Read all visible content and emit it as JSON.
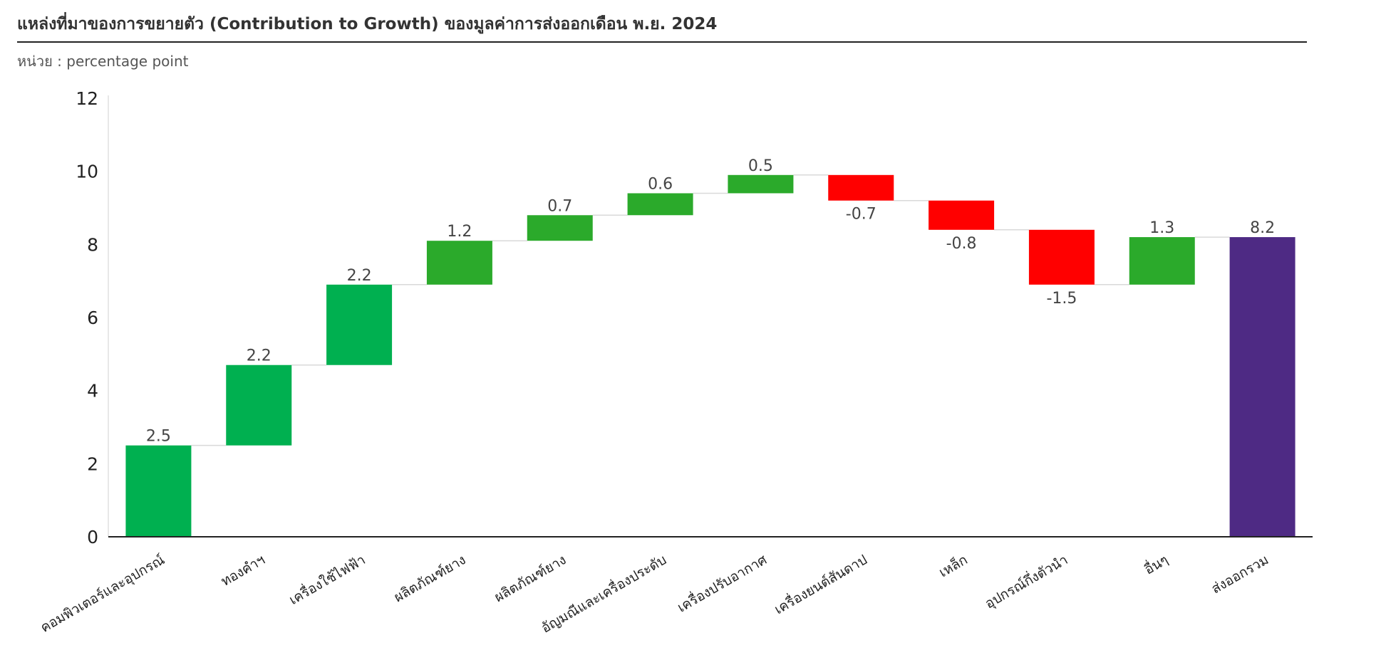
{
  "header": {
    "title": "แหล่งที่มาของการขยายตัว (Contribution to Growth) ของมูลค่าการส่งออกเดือน พ.ย. 2024",
    "subtitle": "หน่วย : percentage point"
  },
  "chart_data": {
    "type": "bar",
    "subtype": "waterfall",
    "title": "แหล่งที่มาของการขยายตัว (Contribution to Growth) ของมูลค่าการส่งออกเดือน พ.ย. 2024",
    "subtitle": "หน่วย : percentage point",
    "categories": [
      "คอมพิวเตอร์และอุปกรณ์",
      "ทองคำฯ",
      "เครื่องใช้ไฟฟ้า",
      "ผลิตภัณฑ์ยาง",
      "ผลิตภัณฑ์ยาง",
      "อัญมณีและเครื่องประดับ",
      "เครื่องปรับอากาศ",
      "เครื่องยนต์สันดาป",
      "เหล็ก",
      "อุปกรณ์กึ่งตัวนำ",
      "อื่นๆ",
      "ส่งออกรวม"
    ],
    "values": [
      2.5,
      2.2,
      2.2,
      1.2,
      0.7,
      0.6,
      0.5,
      -0.7,
      -0.8,
      -1.5,
      1.3,
      8.2
    ],
    "value_labels": [
      "2.5",
      "2.2",
      "2.2",
      "1.2",
      "0.7",
      "0.6",
      "0.5",
      "-0.7",
      "-0.8",
      "-1.5",
      "1.3",
      "8.2"
    ],
    "is_total": [
      false,
      false,
      false,
      false,
      false,
      false,
      false,
      false,
      false,
      false,
      false,
      true
    ],
    "ylim": [
      0,
      12
    ],
    "yticks": [
      "0",
      "2",
      "4",
      "6",
      "8",
      "10",
      "12"
    ],
    "grid": false,
    "legend": "none",
    "colors": {
      "increase_early": "#00B050",
      "increase_late": "#2BAA2B",
      "decrease": "#FF0000",
      "total": "#4E2A84",
      "connector": "#D9D9D9",
      "axis": "#222222"
    },
    "increase_color_key": [
      "increase_early",
      "increase_early",
      "increase_early",
      "increase_late",
      "increase_late",
      "increase_late",
      "increase_late",
      null,
      null,
      null,
      "increase_late",
      null
    ]
  }
}
